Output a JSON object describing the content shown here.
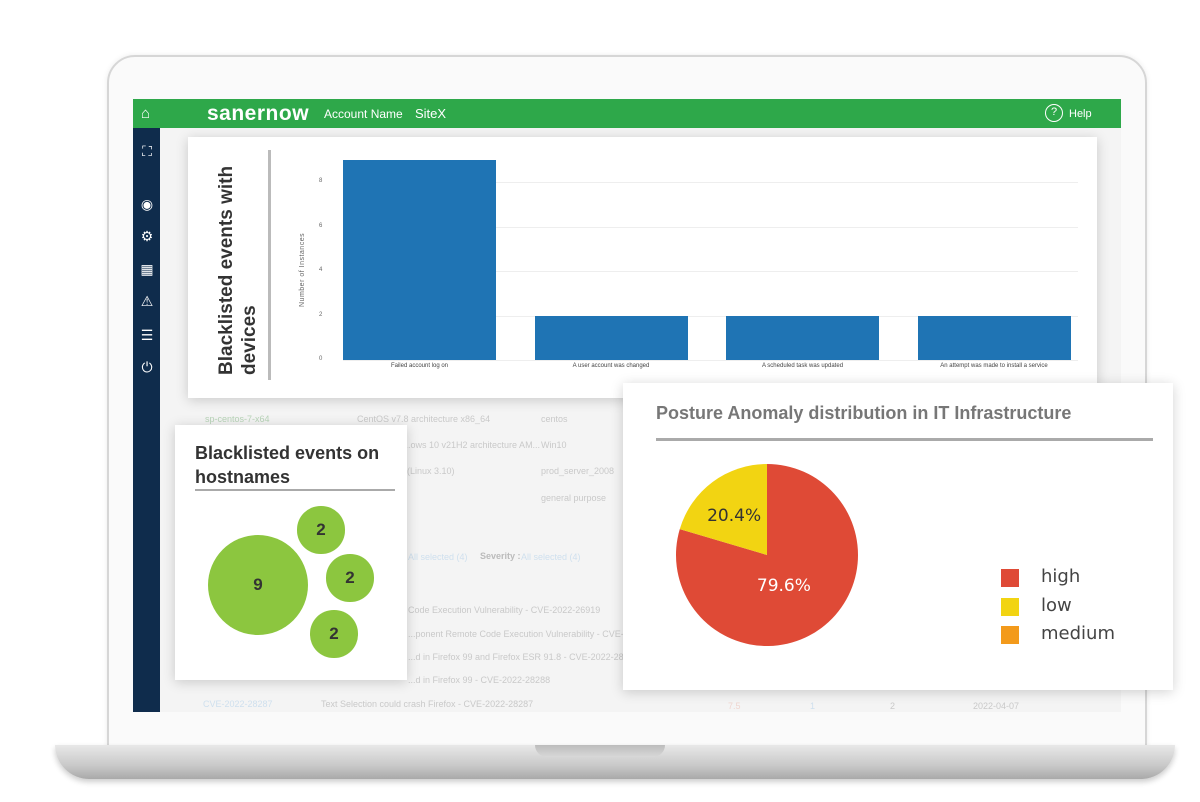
{
  "header": {
    "brand": "sanernow",
    "account": "Account Name",
    "site": "SiteX",
    "help": "Help"
  },
  "sidebar": {
    "icons": [
      "home-icon",
      "network-icon",
      "eye-icon",
      "gear-user-icon",
      "report-icon",
      "warning-icon",
      "clipboard-icon",
      "logout-icon"
    ]
  },
  "background_table": {
    "rows": [
      [
        "sp-centos-7-x64",
        "CentOS v7.8 architecture x86_64",
        "centos"
      ],
      [
        "",
        "...ows 10 v21H2 architecture AM...",
        "Win10"
      ],
      [
        "",
        "(Linux 3.10)",
        "prod_server_2008"
      ],
      [
        "",
        "",
        "general purpose"
      ]
    ],
    "filters": [
      "All selected (4)",
      "Severity :",
      "All selected (4)"
    ],
    "cve_rows": [
      "Code Execution Vulnerability - CVE-2022-26919",
      "...ponent Remote Code Execution Vulnerability - CVE-2022-2...",
      "...d in Firefox 99 and Firefox ESR 91.8 - CVE-2022-28289",
      "...d in Firefox 99 - CVE-2022-28288",
      "Text Selection could crash Firefox - CVE-2022-28287"
    ],
    "last_row": [
      "CVE-2022-28287",
      "7.5",
      "1",
      "2",
      "2022-04-07"
    ]
  },
  "chart_data": [
    {
      "type": "bar",
      "title": "Blacklisted events with devices",
      "ylabel": "Number of Instances",
      "xlabel": "",
      "ylim": [
        0,
        9
      ],
      "yticks": [
        0,
        2,
        4,
        6,
        8
      ],
      "grid": true,
      "categories": [
        "Failed account log on",
        "A user account was changed",
        "A scheduled task was updated",
        "An attempt was made to install a service"
      ],
      "values": [
        9,
        2,
        2,
        2
      ],
      "color": "#1f74b4"
    },
    {
      "type": "bubble",
      "title": "Blacklisted events on hostnames",
      "values": [
        9,
        2,
        2,
        2
      ],
      "color": "#8cc63f"
    },
    {
      "type": "pie",
      "title": "Posture Anomaly distribution in IT Infrastructure",
      "legend": "right",
      "slices": [
        {
          "name": "high",
          "value": 79.6,
          "label": "79.6%",
          "color": "#df4a36"
        },
        {
          "name": "low",
          "value": 20.4,
          "label": "20.4%",
          "color": "#f2d412"
        },
        {
          "name": "medium",
          "value": 0,
          "color": "#f39a1b"
        }
      ]
    }
  ]
}
